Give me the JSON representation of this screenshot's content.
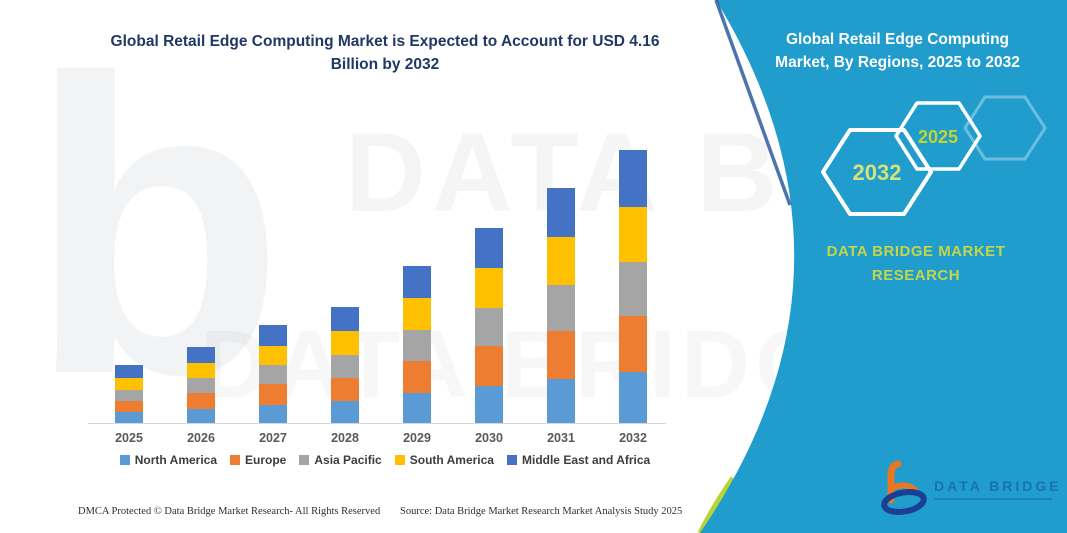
{
  "chart_panel": {
    "title_line1": "Global Retail Edge Computing Market is Expected to Account for USD 4.16",
    "title_line2": "Billion by 2032"
  },
  "chart_data": {
    "type": "bar",
    "stacked": true,
    "title": "Global Retail Edge Computing Market is Expected to Account for USD 4.16 Billion by 2032",
    "unit": "USD Billion",
    "categories": [
      "2025",
      "2026",
      "2027",
      "2028",
      "2029",
      "2030",
      "2031",
      "2032"
    ],
    "series": [
      {
        "name": "North America",
        "color": "#5b9bd5",
        "values": [
          0.16,
          0.22,
          0.28,
          0.33,
          0.45,
          0.56,
          0.67,
          0.78
        ]
      },
      {
        "name": "Europe",
        "color": "#ed7d31",
        "values": [
          0.18,
          0.24,
          0.31,
          0.36,
          0.49,
          0.61,
          0.73,
          0.85
        ]
      },
      {
        "name": "Asia Pacific",
        "color": "#a5a5a5",
        "values": [
          0.17,
          0.23,
          0.29,
          0.35,
          0.47,
          0.59,
          0.71,
          0.82
        ]
      },
      {
        "name": "South America",
        "color": "#ffc000",
        "values": [
          0.18,
          0.23,
          0.3,
          0.36,
          0.49,
          0.6,
          0.73,
          0.85
        ]
      },
      {
        "name": "Middle East and Africa",
        "color": "#4472c4",
        "values": [
          0.19,
          0.24,
          0.31,
          0.37,
          0.49,
          0.61,
          0.74,
          0.86
        ]
      }
    ],
    "totals": [
      0.88,
      1.16,
      1.49,
      1.77,
      2.39,
      2.97,
      3.58,
      4.16
    ],
    "ylim": [
      0,
      4.5
    ],
    "grid": false,
    "axis_labels_visible": false,
    "legend_position": "bottom"
  },
  "right_panel": {
    "title_line1": "Global Retail Edge Computing",
    "title_line2": "Market, By Regions, 2025 to 2032",
    "hexagon_back_label": "2032",
    "hexagon_front_label": "2025",
    "brand_line1": "DATA BRIDGE MARKET",
    "brand_line2": "RESEARCH",
    "logo_text": "DATA BRIDGE"
  },
  "watermark": {
    "letter": "b",
    "row1": "DATA BRI",
    "row2": "DATA BRIDGE"
  },
  "footer": {
    "left": "DMCA Protected © Data Bridge Market Research-  All Rights Reserved",
    "right": "Source: Data Bridge Market Research  Market Analysis Study 2025"
  },
  "colors": {
    "panel_teal": "#1898cb",
    "panel_edge_navy": "#2e5c9e",
    "accent_green": "#b7d436",
    "hexagon_year_back": "#d3e27a",
    "hexagon_year_front": "#bdd631",
    "chart_title_navy": "#1f3864",
    "logo_orange": "#e87722",
    "logo_navy": "#1b3f94"
  }
}
